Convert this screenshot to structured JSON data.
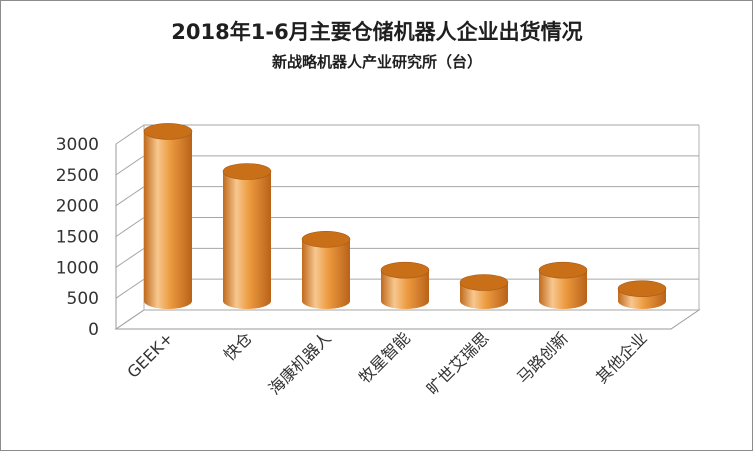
{
  "chart_data": {
    "type": "bar",
    "title": "2018年1-6月主要仓储机器人企业出货情况",
    "subtitle": "新战略机器人产业研究所（台）",
    "categories": [
      "GEEK+",
      "快仓",
      "海康机器人",
      "牧星智能",
      "旷世艾瑞思",
      "马路创新",
      "其他企业"
    ],
    "values": [
      2750,
      2100,
      1000,
      500,
      300,
      500,
      200
    ],
    "ylim": [
      0,
      3000
    ],
    "yticks": [
      "0",
      "500",
      "1000",
      "1500",
      "2000",
      "2500",
      "3000"
    ],
    "grid": true,
    "legend": "none",
    "bar_style": "3d-cylinder",
    "colors": {
      "bar": "#e8902e",
      "bar_top": "#c96f18",
      "bar_highlight": "#f7c78f"
    }
  }
}
